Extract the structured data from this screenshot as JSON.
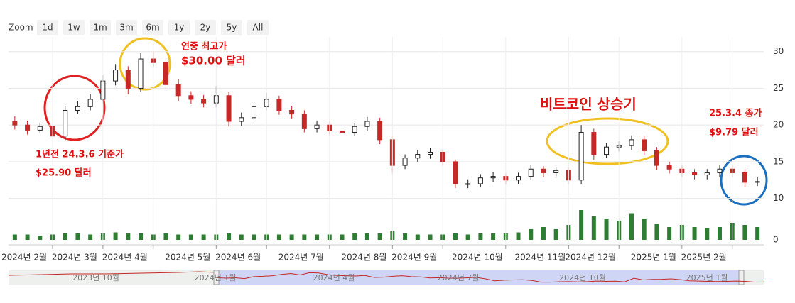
{
  "chart_data": {
    "type": "candlestick",
    "zoom": {
      "label": "Zoom",
      "buttons": [
        "1d",
        "1w",
        "1m",
        "3m",
        "6m",
        "1y",
        "2y",
        "5y",
        "All"
      ]
    },
    "categories": [
      null,
      null,
      null,
      "2024년 2월",
      null,
      null,
      null,
      "2024년 3월",
      null,
      null,
      null,
      "2024년 4월",
      null,
      null,
      null,
      null,
      "2024년 5월",
      null,
      null,
      null,
      "2024년 6월",
      null,
      null,
      null,
      null,
      "2024년 7월",
      null,
      null,
      null,
      null,
      "2024년 8월",
      null,
      null,
      null,
      "2024년 9월",
      null,
      null,
      null,
      null,
      "2024년 10월",
      null,
      null,
      null,
      null,
      "2024년 11월",
      null,
      null,
      null,
      "2024년 12월",
      null,
      null,
      null,
      null,
      "2025년 1월",
      null,
      null,
      null,
      "2025년 2월",
      null,
      null
    ],
    "open": [
      20.5,
      20,
      19.3,
      19.8,
      18.5,
      22,
      22.5,
      23.5,
      26,
      27.5,
      25,
      29,
      28.5,
      25.5,
      24,
      23.5,
      23,
      24,
      20.5,
      21,
      22.5,
      23.5,
      22,
      21.5,
      19.5,
      20,
      19.2,
      19,
      19.8,
      20.5,
      18,
      14.5,
      15.5,
      16,
      16.3,
      15,
      12,
      12,
      12.8,
      13,
      12.5,
      13,
      14,
      13.5,
      13.8,
      12.5,
      19,
      16,
      17,
      17.2,
      18,
      16.5,
      14.5,
      14,
      13.5,
      13.2,
      13.5,
      14,
      13.5,
      12.2
    ],
    "high": [
      21.2,
      20.6,
      20.3,
      20.3,
      22.6,
      23.2,
      24.2,
      26.8,
      28.3,
      28,
      29.8,
      30,
      29,
      26.2,
      24.6,
      24.1,
      25.3,
      24.5,
      21.7,
      23.1,
      24.4,
      24,
      22.6,
      22,
      20.6,
      20.6,
      19.8,
      20.3,
      21.1,
      21,
      18.4,
      16,
      16.6,
      16.9,
      16.7,
      15.3,
      12.6,
      13.3,
      13.6,
      13.4,
      13.5,
      14.6,
      14.4,
      14.3,
      14.2,
      20,
      19.5,
      17.6,
      17.8,
      18.6,
      18.5,
      17,
      15,
      14.5,
      14,
      14,
      14.5,
      14.6,
      14,
      12.9
    ],
    "low": [
      19.4,
      18.7,
      18.9,
      17.8,
      17.9,
      21.5,
      22,
      23,
      25.4,
      24.2,
      24.5,
      27.8,
      24.8,
      23.3,
      22.9,
      22.4,
      22.4,
      19.8,
      19.9,
      20.4,
      22,
      21.4,
      20.9,
      19,
      19,
      18.6,
      18.5,
      18.5,
      19.2,
      17.4,
      13.4,
      14,
      15,
      15.4,
      14.4,
      11.4,
      11.4,
      11.5,
      12.2,
      11.9,
      11.9,
      12.5,
      12.9,
      13,
      11.9,
      12,
      15.3,
      15.5,
      16.4,
      16.6,
      15.9,
      13.9,
      13.4,
      12.9,
      12.6,
      12.6,
      12.9,
      12.9,
      11.6,
      11.7
    ],
    "close": [
      20,
      19.3,
      19.8,
      18.5,
      22,
      22.5,
      23.5,
      26,
      27.5,
      25,
      29,
      28.5,
      25.5,
      24,
      23.5,
      23,
      24,
      20.5,
      21,
      22.5,
      23.5,
      22,
      21.5,
      19.5,
      20,
      19.2,
      19,
      19.8,
      20.5,
      18,
      14.5,
      15.5,
      16,
      16.3,
      15,
      12,
      12,
      12.8,
      13,
      12.5,
      13,
      14,
      13.5,
      13.8,
      12.5,
      19,
      16,
      17,
      17.2,
      18,
      16.5,
      14.5,
      14,
      13.5,
      13.2,
      13.5,
      14,
      13.5,
      12.2,
      12.3
    ],
    "volume": [
      5,
      5,
      4,
      5,
      6,
      6,
      5,
      6,
      7,
      6,
      6,
      5,
      6,
      5,
      5,
      5,
      5,
      6,
      5,
      5,
      5,
      5,
      5,
      5,
      5,
      5,
      5,
      6,
      6,
      6,
      8,
      6,
      5,
      5,
      5,
      6,
      5,
      6,
      6,
      6,
      7,
      10,
      12,
      10,
      14,
      28,
      22,
      20,
      18,
      25,
      20,
      15,
      12,
      14,
      12,
      11,
      12,
      16,
      14,
      12
    ],
    "up_color": "#ffffff",
    "down_color": "#c62828",
    "volume_color": "#2e7d32",
    "navigator_color": "#c62828",
    "ylim": [
      9,
      32
    ],
    "yticks": [
      10,
      15,
      20,
      25,
      30
    ],
    "y2lim": [
      0,
      100
    ],
    "y2ticks": [
      0
    ],
    "grid": true,
    "annotations": [
      "연중 최고가",
      "$30.00 달러",
      "1년전 24.3.6 기준가",
      "$25.90 달러",
      "비트코인 상승기",
      "25.3.4 종가",
      "$9.79 달러"
    ],
    "navigator_labels": [
      "2023년 10월",
      "2024년 1월",
      "2024년 4월",
      "2024년 7월",
      "2024년 10월",
      "2025년 1월"
    ]
  }
}
